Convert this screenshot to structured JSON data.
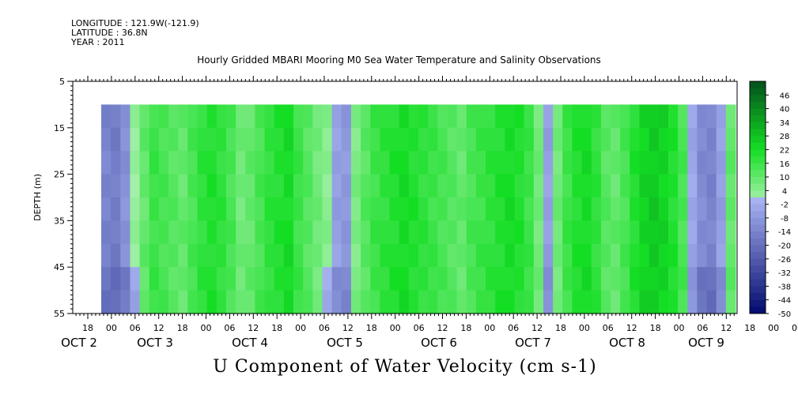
{
  "header": {
    "longitude": "LONGITUDE : 121.9W(-121.9)",
    "latitude": "LATITUDE : 36.8N",
    "year": "YEAR : 2011"
  },
  "chart_data": {
    "type": "heatmap",
    "title": "Hourly Gridded MBARI Mooring M0 Sea Water Temperature and Salinity Observations",
    "xlabel": "U Component of Water Velocity (cm s-1)",
    "ylabel": "DEPTH (m)",
    "ylim": [
      55,
      5
    ],
    "y_ticks": [
      5,
      15,
      25,
      35,
      45,
      55
    ],
    "x_hour_ticks": [
      "18",
      "00",
      "06",
      "12",
      "18",
      "00",
      "06",
      "12",
      "18",
      "00",
      "06",
      "12",
      "18",
      "00",
      "06",
      "12",
      "18",
      "00",
      "06",
      "12",
      "18",
      "00",
      "06",
      "12",
      "18",
      "00",
      "06",
      "12",
      "18",
      "00",
      "06",
      "12"
    ],
    "x_day_labels": [
      "OCT 2",
      "OCT 3",
      "OCT 4",
      "OCT 5",
      "OCT 6",
      "OCT 7",
      "OCT 8",
      "OCT 9"
    ],
    "data_depth_range": [
      10,
      55
    ],
    "colorbar": {
      "labels": [
        46,
        40,
        34,
        28,
        22,
        16,
        10,
        4,
        -2,
        -8,
        -14,
        -20,
        -26,
        -32,
        -38,
        -44,
        -50
      ],
      "range": [
        -50,
        52
      ],
      "step": 3,
      "colors": {
        "neg_light": "#a8b4f2",
        "neg_dark": "#020a6e",
        "pos_light": "#a4f0a8",
        "pos_mid": "#14de24",
        "pos_dark": "#04501c"
      }
    },
    "profile": [
      -14,
      -16,
      -10,
      2,
      10,
      16,
      14,
      12,
      10,
      14,
      18,
      20,
      18,
      14,
      8,
      10,
      14,
      18,
      20,
      22,
      16,
      12,
      8,
      4,
      -6,
      -8,
      6,
      12,
      16,
      18,
      20,
      22,
      20,
      18,
      16,
      14,
      12,
      10,
      14,
      16,
      18,
      20,
      22,
      20,
      16,
      8,
      -6,
      8,
      16,
      20,
      22,
      18,
      12,
      10,
      14,
      20,
      24,
      26,
      24,
      20,
      14,
      -4,
      -12,
      -14,
      -6,
      10
    ]
  }
}
